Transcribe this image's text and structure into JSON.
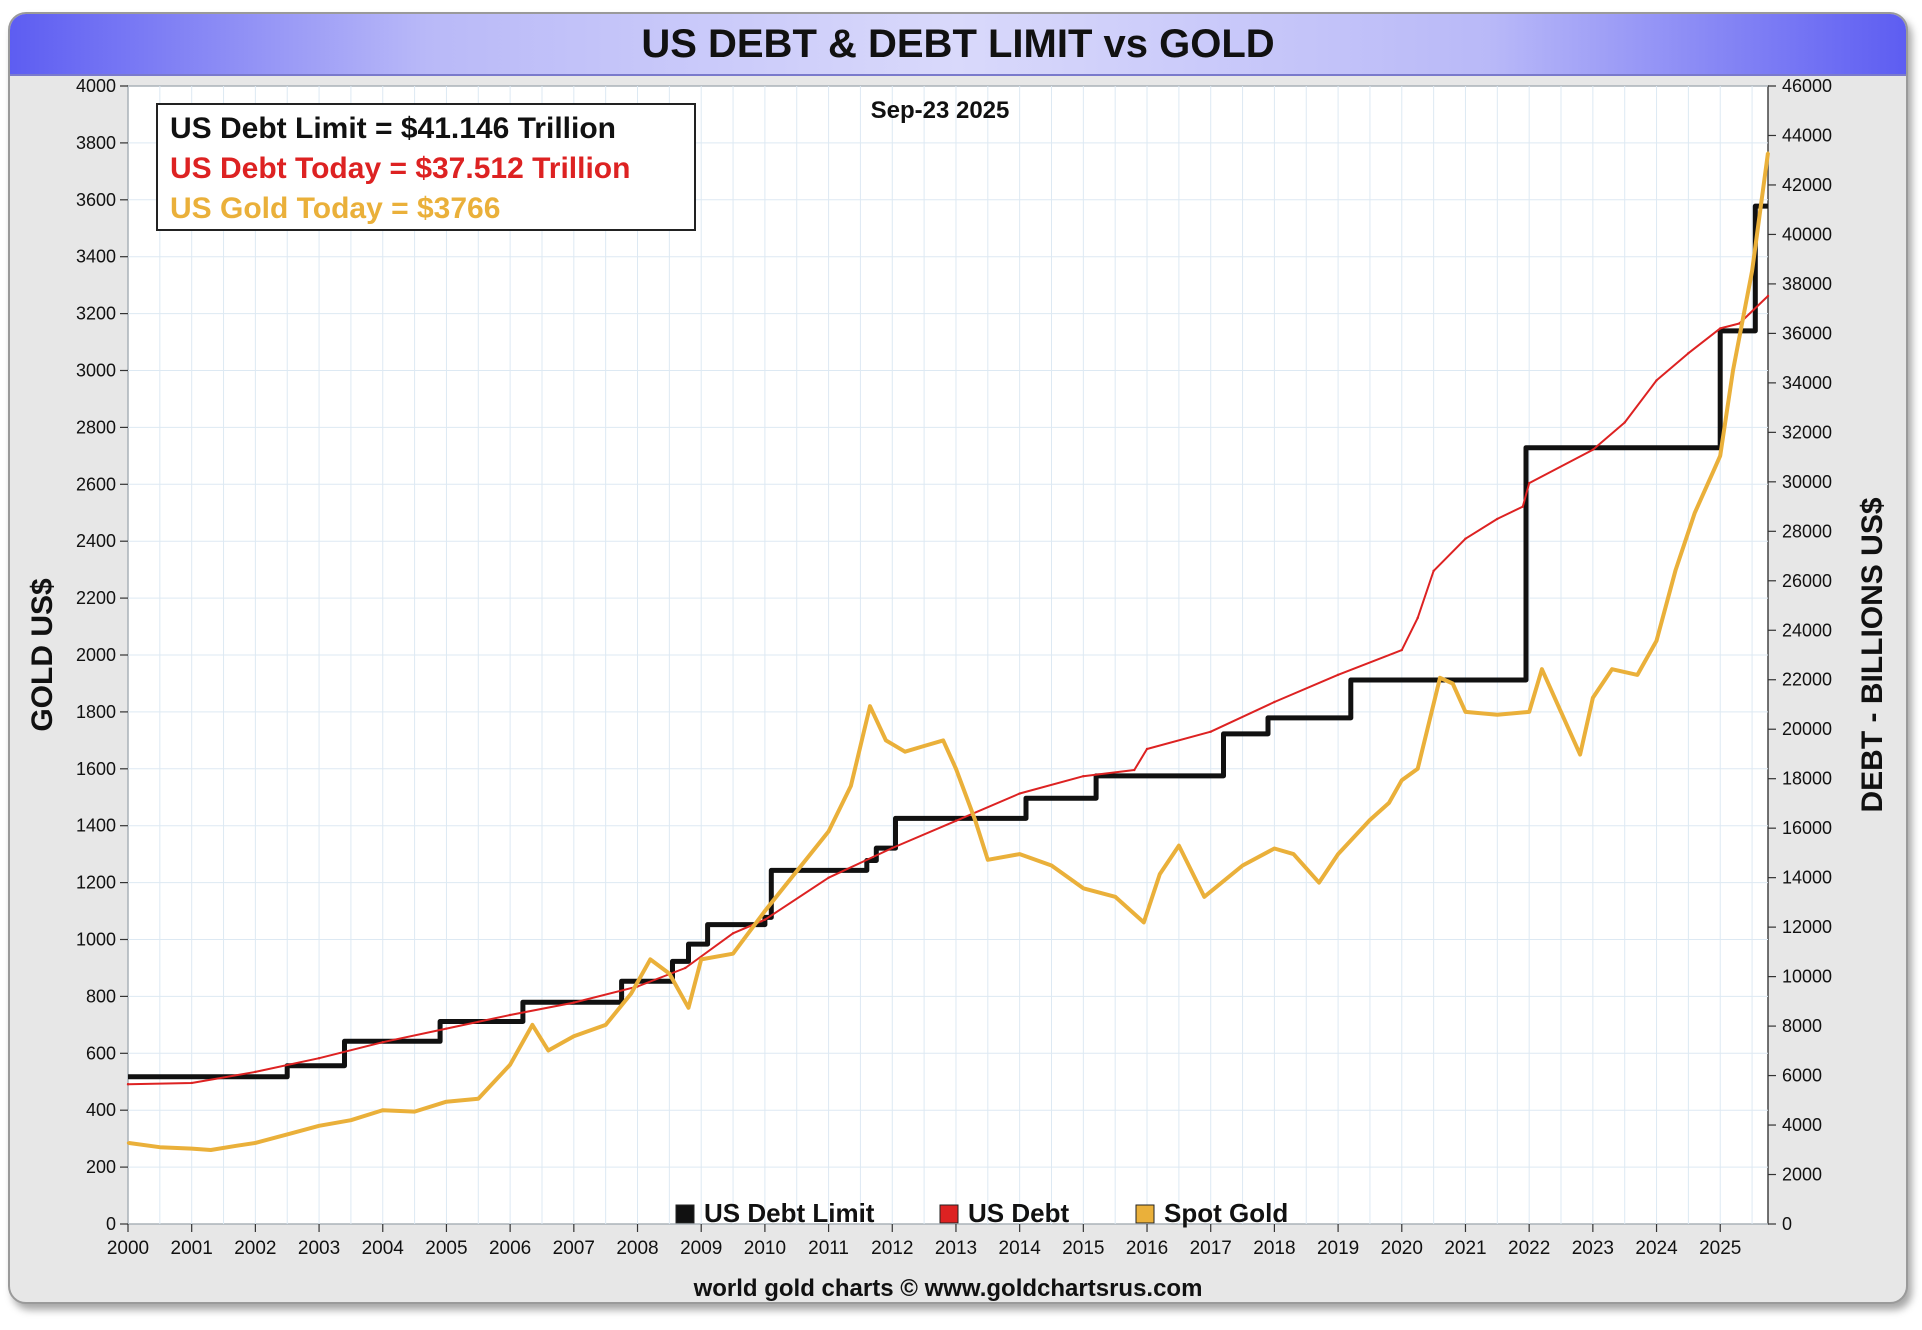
{
  "chart_data": {
    "type": "line",
    "title": "US DEBT & DEBT LIMIT vs GOLD",
    "date_label": "Sep-23  2025",
    "ylabel_left": "GOLD US$",
    "ylabel_right": "DEBT - BILLIONS US$",
    "footer": "world gold charts © www.goldchartsrus.com",
    "xlim": [
      2000,
      2025.75
    ],
    "ylim_left": [
      0,
      4000
    ],
    "ylim_right": [
      0,
      46000
    ],
    "x_ticks": [
      "2000",
      "2001",
      "2002",
      "2003",
      "2004",
      "2005",
      "2006",
      "2007",
      "2008",
      "2009",
      "2010",
      "2011",
      "2012",
      "2013",
      "2014",
      "2015",
      "2016",
      "2017",
      "2018",
      "2019",
      "2020",
      "2021",
      "2022",
      "2023",
      "2024",
      "2025"
    ],
    "y_left_ticks": [
      "0",
      "200",
      "400",
      "600",
      "800",
      "1000",
      "1200",
      "1400",
      "1600",
      "1800",
      "2000",
      "2200",
      "2400",
      "2600",
      "2800",
      "3000",
      "3200",
      "3400",
      "3600",
      "3800",
      "4000"
    ],
    "y_right_ticks": [
      "0",
      "2000",
      "4000",
      "6000",
      "8000",
      "10000",
      "12000",
      "14000",
      "16000",
      "18000",
      "20000",
      "22000",
      "24000",
      "26000",
      "28000",
      "30000",
      "32000",
      "34000",
      "36000",
      "38000",
      "40000",
      "42000",
      "44000",
      "46000"
    ],
    "grid": true,
    "info_box": {
      "position": "top-left",
      "lines": [
        {
          "text": "US Debt Limit    = $41.146 Trillion",
          "color": "#111111"
        },
        {
          "text": "US Debt Today = $37.512 Trillion",
          "color": "#dd2222"
        },
        {
          "text": "US Gold Today = $3766",
          "color": "#eab03a"
        }
      ]
    },
    "legend": {
      "position": "bottom-center",
      "items": [
        {
          "label": "US Debt Limit",
          "color": "#111111"
        },
        {
          "label": "US Debt",
          "color": "#dd2222"
        },
        {
          "label": "Spot Gold",
          "color": "#eab03a"
        }
      ]
    },
    "series": [
      {
        "name": "US Debt Limit",
        "axis": "right",
        "color": "#111111",
        "step": true,
        "x": [
          2000.0,
          2002.5,
          2003.4,
          2004.9,
          2006.2,
          2007.75,
          2008.55,
          2008.8,
          2009.1,
          2010.0,
          2010.1,
          2010.5,
          2011.6,
          2011.75,
          2012.05,
          2014.1,
          2015.2,
          2017.2,
          2017.9,
          2019.2,
          2021.95,
          2025.0,
          2025.55,
          2025.75
        ],
        "y": [
          5950,
          6400,
          7384,
          8184,
          8965,
          9815,
          10615,
          11315,
          12104,
          12394,
          14294,
          14294,
          14694,
          15194,
          16394,
          17212,
          18113,
          19809,
          20456,
          21988,
          31381,
          36100,
          41146,
          41146
        ]
      },
      {
        "name": "US Debt",
        "axis": "right",
        "color": "#dd2222",
        "x": [
          2000.0,
          2001.0,
          2002.0,
          2003.0,
          2004.0,
          2005.0,
          2006.0,
          2007.0,
          2008.0,
          2008.75,
          2009.5,
          2010.0,
          2011.0,
          2012.0,
          2013.0,
          2014.0,
          2015.0,
          2015.8,
          2016.0,
          2017.0,
          2018.0,
          2019.0,
          2020.0,
          2020.25,
          2020.5,
          2021.0,
          2021.5,
          2021.9,
          2022.0,
          2023.0,
          2023.5,
          2024.0,
          2024.5,
          2025.0,
          2025.3,
          2025.75
        ],
        "y": [
          5650,
          5700,
          6150,
          6700,
          7350,
          7900,
          8450,
          8950,
          9600,
          10350,
          11750,
          12300,
          14000,
          15200,
          16300,
          17400,
          18100,
          18350,
          19200,
          19900,
          21100,
          22200,
          23200,
          24500,
          26400,
          27700,
          28500,
          29000,
          29950,
          31300,
          32400,
          34100,
          35200,
          36200,
          36400,
          37512
        ]
      },
      {
        "name": "Spot Gold",
        "axis": "left",
        "color": "#eab03a",
        "x": [
          2000.0,
          2000.5,
          2001.0,
          2001.3,
          2001.7,
          2002.0,
          2002.5,
          2003.0,
          2003.5,
          2004.0,
          2004.5,
          2005.0,
          2005.5,
          2006.0,
          2006.35,
          2006.6,
          2007.0,
          2007.5,
          2007.9,
          2008.2,
          2008.5,
          2008.8,
          2009.0,
          2009.5,
          2010.0,
          2010.5,
          2011.0,
          2011.35,
          2011.65,
          2011.9,
          2012.2,
          2012.5,
          2012.8,
          2013.0,
          2013.3,
          2013.5,
          2014.0,
          2014.5,
          2015.0,
          2015.5,
          2015.95,
          2016.2,
          2016.5,
          2016.9,
          2017.5,
          2018.0,
          2018.3,
          2018.7,
          2019.0,
          2019.5,
          2019.8,
          2020.0,
          2020.25,
          2020.6,
          2020.8,
          2021.0,
          2021.5,
          2022.0,
          2022.2,
          2022.5,
          2022.8,
          2023.0,
          2023.3,
          2023.7,
          2024.0,
          2024.3,
          2024.6,
          2024.9,
          2025.0,
          2025.2,
          2025.5,
          2025.75
        ],
        "y": [
          285,
          270,
          265,
          260,
          275,
          285,
          315,
          345,
          365,
          400,
          395,
          430,
          440,
          560,
          700,
          610,
          660,
          700,
          810,
          930,
          880,
          760,
          930,
          950,
          1100,
          1240,
          1380,
          1540,
          1820,
          1700,
          1660,
          1680,
          1700,
          1600,
          1420,
          1280,
          1300,
          1260,
          1180,
          1150,
          1060,
          1230,
          1330,
          1150,
          1260,
          1320,
          1300,
          1200,
          1300,
          1420,
          1480,
          1560,
          1600,
          1920,
          1900,
          1800,
          1790,
          1800,
          1950,
          1800,
          1650,
          1850,
          1950,
          1930,
          2050,
          2300,
          2500,
          2650,
          2700,
          3000,
          3350,
          3766
        ]
      }
    ]
  }
}
